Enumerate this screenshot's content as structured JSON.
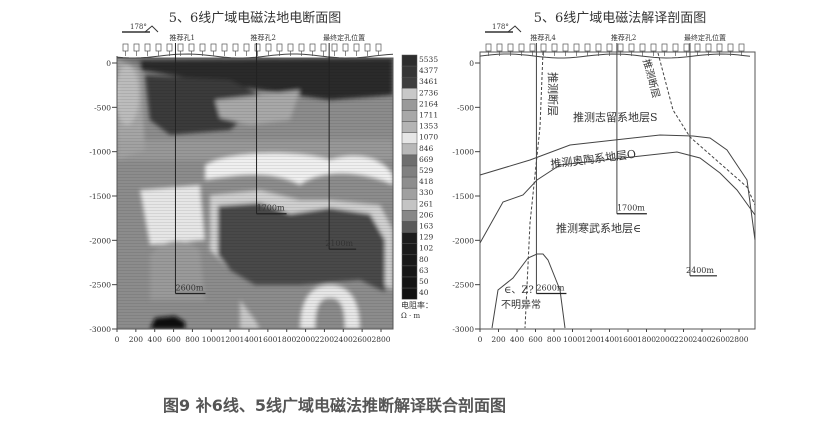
{
  "caption": "图9 补6线、5线广域电磁法推断解译联合剖面图",
  "left_panel": {
    "title": "5、6线广域电磁法地电断面图",
    "azimuth": "178°",
    "boreholes": [
      {
        "label": "推荐孔1",
        "x": 620,
        "depth": 2600,
        "depth_label": "2600m"
      },
      {
        "label": "推荐孔2",
        "x": 1480,
        "depth": 1700,
        "depth_label": "1700m"
      },
      {
        "label": "最终定孔位置",
        "x": 2250,
        "depth": 2100,
        "depth_label": "2100m"
      }
    ],
    "legend": {
      "values": [
        "5535",
        "4377",
        "3461",
        "2736",
        "2164",
        "1711",
        "1353",
        "1070",
        "846",
        "669",
        "529",
        "418",
        "330",
        "261",
        "206",
        "163",
        "129",
        "102",
        "80",
        "63",
        "50",
        "40"
      ],
      "colors": [
        "#2e2e2e",
        "#363636",
        "#3e3e3e",
        "#c8c8c8",
        "#9a9a9a",
        "#a8a8a8",
        "#b4b4b4",
        "#e6e6e6",
        "#b8b8b8",
        "#6e6e6e",
        "#808080",
        "#8e8e8e",
        "#a0a0a0",
        "#c4c4c4",
        "#888888",
        "#5a5a5a",
        "#1c1c1c",
        "#1a1a1a",
        "#181818",
        "#161616",
        "#141414",
        "#121212"
      ],
      "unit_line1": "电阻率：",
      "unit_line2": "Ω · m"
    }
  },
  "right_panel": {
    "title": "5、6线广域电磁法解译剖面图",
    "azimuth": "178°",
    "boreholes": [
      {
        "label": "推荐孔4",
        "x": 610,
        "depth": 2600,
        "depth_label": "2600m"
      },
      {
        "label": "推荐孔2",
        "x": 1480,
        "depth": 1700,
        "depth_label": "1700m"
      },
      {
        "label": "最终定孔位置",
        "x": 2270,
        "depth": 2400,
        "depth_label": "2400m"
      }
    ],
    "labels": {
      "fault_left": "推测断层",
      "fault_right": "推测断层",
      "silurian": "推测志留系地层S",
      "ordovician": "推测奥陶系地层O",
      "cambrian": "推测寒武系地层∈",
      "anomaly_1": "∈、Z?",
      "anomaly_2": "不明异常"
    }
  },
  "axes": {
    "x_ticks": [
      "0",
      "200",
      "400",
      "600",
      "800",
      "1000",
      "1200",
      "1400",
      "1600",
      "1800",
      "2000",
      "2200",
      "2400",
      "2600",
      "2800"
    ],
    "y_ticks": [
      "0",
      "-500",
      "-1000",
      "-1500",
      "-2000",
      "-2500",
      "-3000"
    ]
  }
}
